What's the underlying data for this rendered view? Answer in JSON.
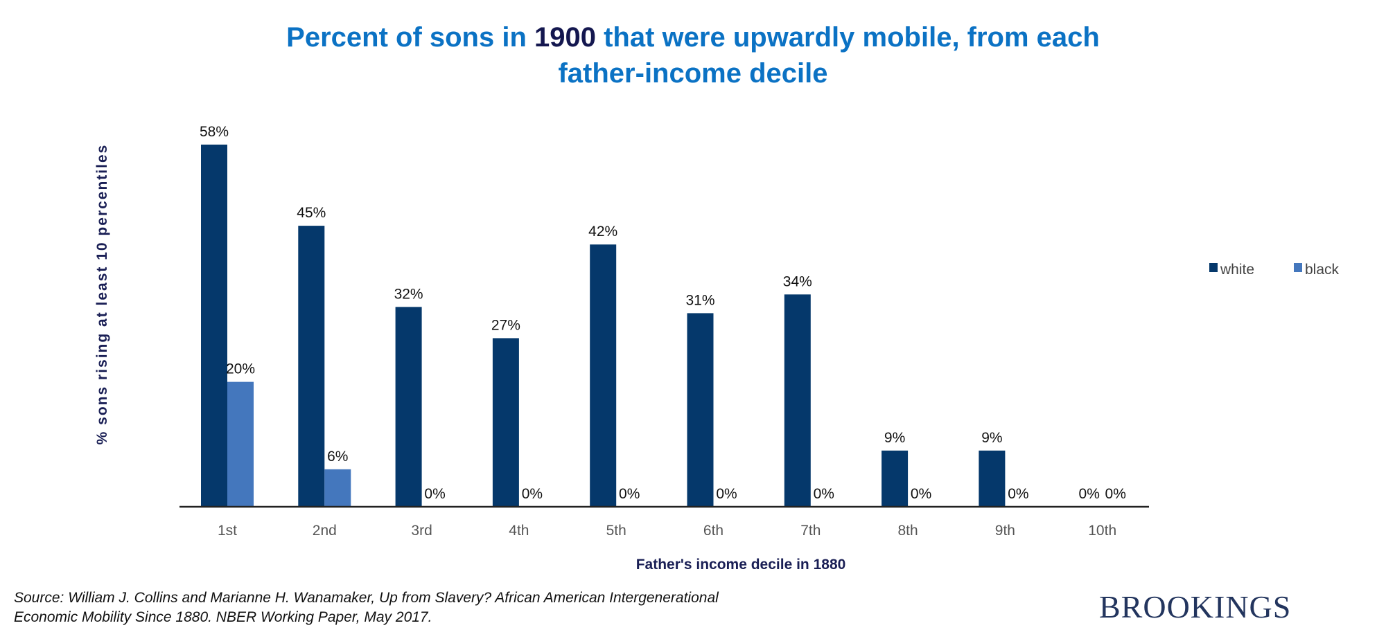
{
  "chart_data": {
    "type": "bar",
    "title_parts": [
      "Percent of sons in ",
      "1900",
      " that were upwardly mobile, from each",
      "father-income decile"
    ],
    "xlabel": "Father's income decile in 1880",
    "ylabel": "% sons rising at least 10 percentiles",
    "categories": [
      "1st",
      "2nd",
      "3rd",
      "4th",
      "5th",
      "6th",
      "7th",
      "8th",
      "9th",
      "10th"
    ],
    "series": [
      {
        "name": "white",
        "color": "#05386b",
        "values": [
          58,
          45,
          32,
          27,
          42,
          31,
          34,
          9,
          9,
          0
        ],
        "labels": [
          "58%",
          "45%",
          "32%",
          "27%",
          "42%",
          "31%",
          "34%",
          "9%",
          "9%",
          "0%"
        ]
      },
      {
        "name": "black",
        "color": "#4477bd",
        "values": [
          20,
          6,
          0,
          0,
          0,
          0,
          0,
          0,
          0,
          0
        ],
        "labels": [
          "20%",
          "6%",
          "0%",
          "0%",
          "0%",
          "0%",
          "0%",
          "0%",
          "0%",
          "0%"
        ]
      }
    ],
    "ylim": [
      0,
      60
    ],
    "grid": false,
    "legend": "right"
  },
  "source": [
    "Source: William J. Collins and Marianne H. Wanamaker, Up from Slavery? African American Intergenerational",
    "Economic Mobility Since 1880. NBER Working Paper, May 2017."
  ],
  "logo": "BROOKINGS"
}
